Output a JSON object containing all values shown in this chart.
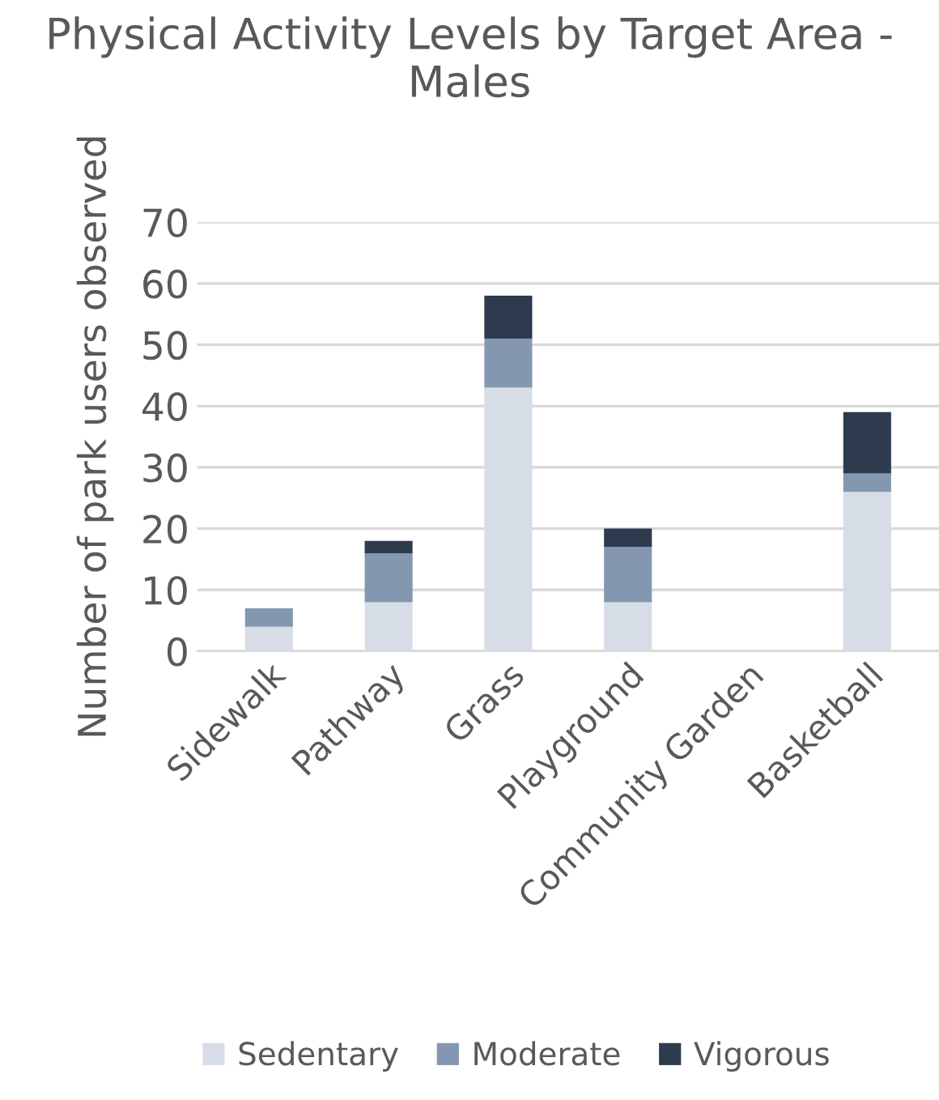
{
  "chart_data": {
    "type": "bar",
    "title": "Physical Activity Levels by Target Area - Males",
    "ylabel": "Number of park users observed",
    "categories": [
      "Sidewalk",
      "Pathway",
      "Grass",
      "Playground",
      "Community Garden",
      "Basketball"
    ],
    "stacked": true,
    "series": [
      {
        "name": "Sedentary",
        "color": "#d6dde7",
        "values": [
          4,
          8,
          43,
          8,
          0,
          26
        ]
      },
      {
        "name": "Moderate",
        "color": "#8497b0",
        "values": [
          3,
          8,
          8,
          9,
          0,
          3
        ]
      },
      {
        "name": "Vigorous",
        "color": "#2e3b4e",
        "values": [
          0,
          2,
          7,
          3,
          0,
          10
        ]
      }
    ],
    "ylim": [
      0,
      70
    ],
    "yticks": [
      0,
      10,
      20,
      30,
      40,
      50,
      60,
      70
    ],
    "grid": "y",
    "legend": "bottom"
  }
}
